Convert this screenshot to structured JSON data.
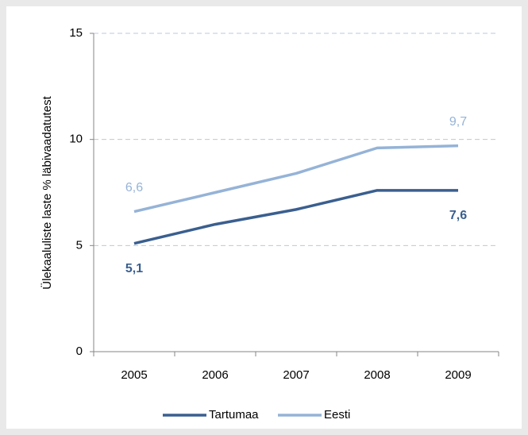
{
  "chart_data": {
    "type": "line",
    "y_label": "Ülekaaluliste laste % läbivaadatutest",
    "categories": [
      "2005",
      "2006",
      "2007",
      "2008",
      "2009"
    ],
    "series": [
      {
        "name": "Tartumaa",
        "color": "#3a5f8f",
        "values": [
          5.1,
          6.0,
          6.7,
          7.6,
          7.6
        ],
        "value_labels": [
          "5,1",
          null,
          null,
          null,
          "7,6"
        ]
      },
      {
        "name": "Eesti",
        "color": "#95b3d7",
        "values": [
          6.6,
          7.5,
          8.4,
          9.6,
          9.7
        ],
        "value_labels": [
          "6,6",
          null,
          null,
          null,
          "9,7"
        ]
      }
    ],
    "ylim": [
      0,
      15
    ],
    "yticks": [
      0,
      5,
      10,
      15
    ],
    "grid": true,
    "legend": "bottom"
  }
}
